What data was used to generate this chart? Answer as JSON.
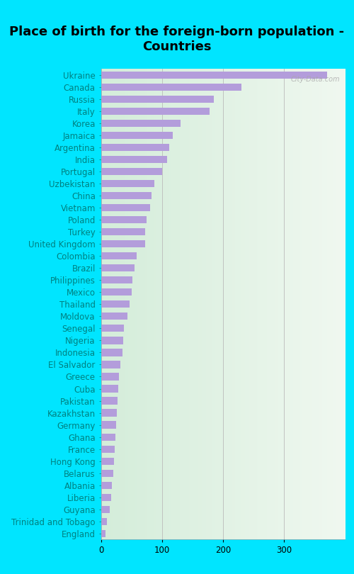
{
  "title": "Place of birth for the foreign-born population -\nCountries",
  "countries": [
    "Ukraine",
    "Canada",
    "Russia",
    "Italy",
    "Korea",
    "Jamaica",
    "Argentina",
    "India",
    "Portugal",
    "Uzbekistan",
    "China",
    "Vietnam",
    "Poland",
    "Turkey",
    "United Kingdom",
    "Colombia",
    "Brazil",
    "Philippines",
    "Mexico",
    "Thailand",
    "Moldova",
    "Senegal",
    "Nigeria",
    "Indonesia",
    "El Salvador",
    "Greece",
    "Cuba",
    "Pakistan",
    "Kazakhstan",
    "Germany",
    "Ghana",
    "France",
    "Hong Kong",
    "Belarus",
    "Albania",
    "Liberia",
    "Guyana",
    "Trinidad and Tobago",
    "England"
  ],
  "values": [
    370,
    230,
    185,
    178,
    130,
    118,
    112,
    108,
    100,
    88,
    83,
    80,
    75,
    72,
    72,
    58,
    55,
    52,
    50,
    47,
    44,
    38,
    37,
    35,
    32,
    30,
    28,
    27,
    26,
    25,
    24,
    23,
    22,
    20,
    18,
    17,
    14,
    10,
    8
  ],
  "bar_color": "#b39ddb",
  "background_color_fig": "#00e5ff",
  "xlabel_values": [
    0,
    100,
    200,
    300
  ],
  "title_fontsize": 13,
  "tick_fontsize": 8.5,
  "watermark": "City-Data.com"
}
